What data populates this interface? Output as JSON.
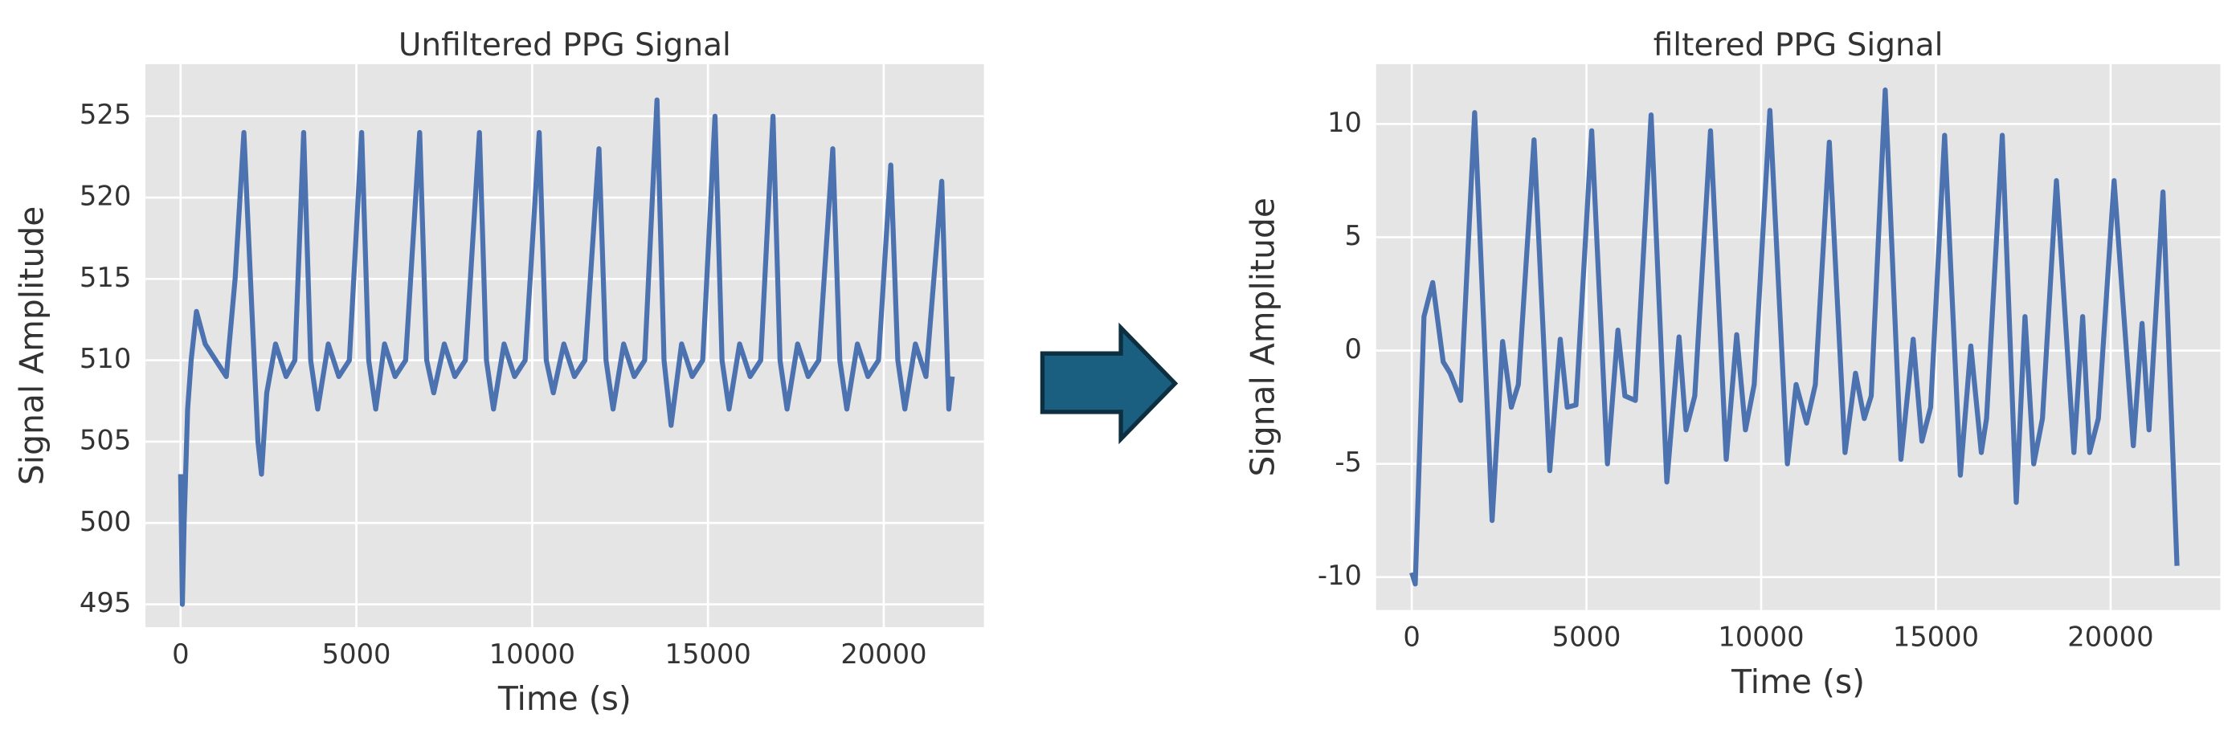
{
  "chart_data": [
    {
      "type": "line",
      "title": "Unfiltered PPG Signal",
      "xlabel": "Time (s)",
      "ylabel": "Signal Amplitude",
      "color": "#4c72b0",
      "grid": true,
      "xlim": [
        -1000,
        22850
      ],
      "ylim": [
        493.6,
        528.2
      ],
      "xticks": [
        0,
        5000,
        10000,
        15000,
        20000
      ],
      "yticks": [
        495,
        500,
        505,
        510,
        515,
        520,
        525
      ],
      "x": [
        0,
        50,
        100,
        200,
        300,
        450,
        700,
        1000,
        1300,
        1550,
        1800,
        2050,
        2200,
        2300,
        2450,
        2700,
        3000,
        3250,
        3500,
        3700,
        3900,
        4200,
        4500,
        4800,
        5150,
        5350,
        5550,
        5800,
        6100,
        6400,
        6800,
        7000,
        7200,
        7500,
        7800,
        8100,
        8500,
        8700,
        8900,
        9200,
        9500,
        9800,
        10200,
        10400,
        10600,
        10900,
        11200,
        11500,
        11900,
        12100,
        12300,
        12600,
        12900,
        13200,
        13550,
        13750,
        13950,
        14250,
        14550,
        14850,
        15200,
        15400,
        15600,
        15900,
        16200,
        16500,
        16850,
        17050,
        17250,
        17550,
        17850,
        18150,
        18550,
        18750,
        18950,
        19250,
        19550,
        19850,
        20200,
        20400,
        20600,
        20900,
        21200,
        21650,
        21850,
        21950
      ],
      "values": [
        503,
        495,
        500,
        507,
        510,
        513,
        511,
        510,
        509,
        515,
        524,
        512,
        505,
        503,
        508,
        511,
        509,
        510,
        524,
        510,
        507,
        511,
        509,
        510,
        524,
        510,
        507,
        511,
        509,
        510,
        524,
        510,
        508,
        511,
        509,
        510,
        524,
        510,
        507,
        511,
        509,
        510,
        524,
        510,
        508,
        511,
        509,
        510,
        523,
        510,
        507,
        511,
        509,
        510,
        526,
        510,
        506,
        511,
        509,
        510,
        525,
        510,
        507,
        511,
        509,
        510,
        525,
        510,
        507,
        511,
        509,
        510,
        523,
        510,
        507,
        511,
        509,
        510,
        522,
        510,
        507,
        511,
        509,
        521,
        507,
        509
      ]
    },
    {
      "type": "line",
      "title": "filtered PPG Signal",
      "xlabel": "Time (s)",
      "ylabel": "Signal Amplitude",
      "color": "#4c72b0",
      "grid": true,
      "xlim": [
        -1020,
        23140
      ],
      "ylim": [
        -11.45,
        12.64
      ],
      "xticks": [
        0,
        5000,
        10000,
        15000,
        20000
      ],
      "yticks": [
        -10,
        -5,
        0,
        5,
        10
      ],
      "x": [
        0,
        100,
        350,
        600,
        900,
        1100,
        1400,
        1800,
        2300,
        2600,
        2850,
        3050,
        3500,
        3950,
        4250,
        4450,
        4700,
        5150,
        5600,
        5900,
        6100,
        6400,
        6850,
        7300,
        7650,
        7850,
        8100,
        8550,
        9000,
        9300,
        9550,
        9800,
        10250,
        10750,
        11000,
        11300,
        11550,
        11950,
        12400,
        12700,
        12950,
        13150,
        13550,
        14000,
        14350,
        14600,
        14850,
        15250,
        15700,
        16000,
        16300,
        16450,
        16900,
        17300,
        17550,
        17800,
        18050,
        18450,
        18950,
        19200,
        19400,
        19650,
        20100,
        20650,
        20900,
        21100,
        21500,
        21900
      ],
      "values": [
        -9.8,
        -10.3,
        1.5,
        3,
        -0.5,
        -1,
        -2.2,
        10.5,
        -7.5,
        0.4,
        -2.5,
        -1.5,
        9.3,
        -5.3,
        0.5,
        -2.5,
        -2.4,
        9.7,
        -5,
        0.9,
        -2,
        -2.2,
        10.4,
        -5.8,
        0.6,
        -3.5,
        -2,
        9.7,
        -4.8,
        0.7,
        -3.5,
        -1.5,
        10.6,
        -5,
        -1.5,
        -3.2,
        -1.5,
        9.2,
        -4.5,
        -1,
        -3,
        -2,
        11.5,
        -4.8,
        0.5,
        -4,
        -2.5,
        9.5,
        -5.5,
        0.2,
        -4.5,
        -3,
        9.5,
        -6.7,
        1.5,
        -5,
        -3,
        7.5,
        -4.5,
        1.5,
        -4.5,
        -3,
        7.5,
        -4.2,
        1.2,
        -3.5,
        7.0,
        -9.5
      ]
    }
  ]
}
